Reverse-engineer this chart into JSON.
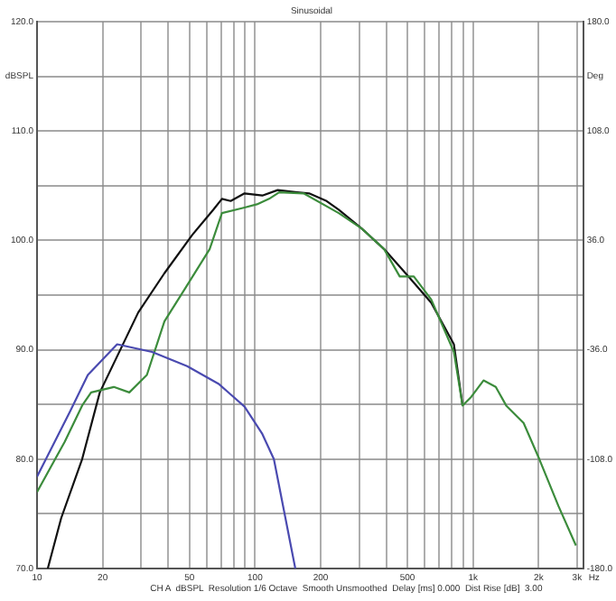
{
  "chart_data": {
    "type": "line",
    "title": "Sinusoidal",
    "ylabel": "dBSPL",
    "y2label": "Deg",
    "xlabel": "Hz",
    "annotations": [
      "CH A  dBSPL  Resolution 1/6 Octave  Smooth Unsmoothed  Delay [ms] 0.000  Dist Rise [dB]  3.00"
    ],
    "log": "x",
    "xlim": [
      10,
      3200
    ],
    "xticks": [
      10,
      20,
      {
        "value": 30,
        "label": null
      },
      {
        "value": 40,
        "label": null
      },
      50,
      {
        "value": 60,
        "label": null
      },
      {
        "value": 70,
        "label": null
      },
      {
        "value": 80,
        "label": null
      },
      {
        "value": 90,
        "label": null
      },
      100,
      200,
      {
        "value": 300,
        "label": null
      },
      {
        "value": 400,
        "label": null
      },
      500,
      {
        "value": 600,
        "label": null
      },
      {
        "value": 700,
        "label": null
      },
      {
        "value": 800,
        "label": null
      },
      {
        "value": 900,
        "label": null
      },
      {
        "value": 1000,
        "label": "1k"
      },
      {
        "value": 2000,
        "label": "2k"
      },
      {
        "value": 3000,
        "label": "3k"
      }
    ],
    "ylim": [
      70,
      120
    ],
    "yticks": [
      {
        "value": 70,
        "label": "70.0"
      },
      {
        "value": 75,
        "label": null
      },
      {
        "value": 80,
        "label": "80.0"
      },
      {
        "value": 85,
        "label": null
      },
      {
        "value": 90,
        "label": "90.0"
      },
      {
        "value": 95,
        "label": null
      },
      {
        "value": 100,
        "label": "100.0"
      },
      {
        "value": 105,
        "label": null
      },
      {
        "value": 110,
        "label": "110.0"
      },
      {
        "value": 115,
        "label": null
      },
      {
        "value": 120,
        "label": "120.0"
      }
    ],
    "y2lim": [
      -180,
      180
    ],
    "y2ticks": [
      {
        "value": -180,
        "label": "-180.0"
      },
      {
        "value": -108,
        "label": "-108.0"
      },
      {
        "value": -36,
        "label": "-36.0"
      },
      {
        "value": 36,
        "label": "36.0"
      },
      {
        "value": 108,
        "label": "108.0"
      },
      {
        "value": 180,
        "label": "180.0"
      }
    ],
    "grid": true,
    "legend": false,
    "marker": "none",
    "line_style": "solid",
    "series": [
      {
        "color": "#4a4ab0",
        "x": [
          10,
          14.2,
          17.1,
          23.3,
          33.7,
          48.8,
          67.9,
          89.5,
          108,
          122,
          153
        ],
        "values": [
          78.4,
          84.4,
          87.7,
          90.5,
          89.8,
          88.5,
          86.9,
          84.8,
          82.3,
          80.0,
          70.0
        ]
      },
      {
        "color": "#3c8c3c",
        "x": [
          10,
          13.4,
          16.1,
          17.7,
          22.5,
          26.5,
          31.9,
          38.4,
          48.8,
          61.9,
          70.5,
          89.5,
          102,
          116,
          129,
          167,
          242,
          308,
          391,
          461,
          535,
          643,
          817,
          895,
          982,
          1117,
          1271,
          1419,
          1706,
          2014,
          2466,
          2965
        ],
        "values": [
          77.0,
          81.6,
          84.9,
          86.1,
          86.6,
          86.1,
          87.7,
          92.6,
          95.9,
          99.2,
          102.5,
          103.0,
          103.3,
          103.8,
          104.4,
          104.3,
          102.5,
          101.1,
          99.2,
          96.7,
          96.7,
          94.6,
          89.8,
          84.9,
          85.7,
          87.2,
          86.6,
          84.9,
          83.3,
          80.0,
          75.7,
          72.1
        ]
      },
      {
        "color": "#111111",
        "x": [
          11.2,
          12.9,
          16.1,
          19.4,
          29.1,
          38.4,
          51.5,
          64.3,
          70.5,
          77.3,
          89.5,
          108,
          127,
          156,
          177,
          213,
          242,
          308,
          391,
          506,
          643,
          817,
          895
        ],
        "values": [
          70.0,
          74.6,
          80.0,
          86.1,
          93.4,
          97.0,
          100.5,
          102.8,
          103.8,
          103.6,
          104.3,
          104.1,
          104.6,
          104.4,
          104.3,
          103.6,
          102.8,
          101.1,
          99.2,
          96.7,
          94.3,
          90.5,
          84.9
        ]
      }
    ]
  }
}
